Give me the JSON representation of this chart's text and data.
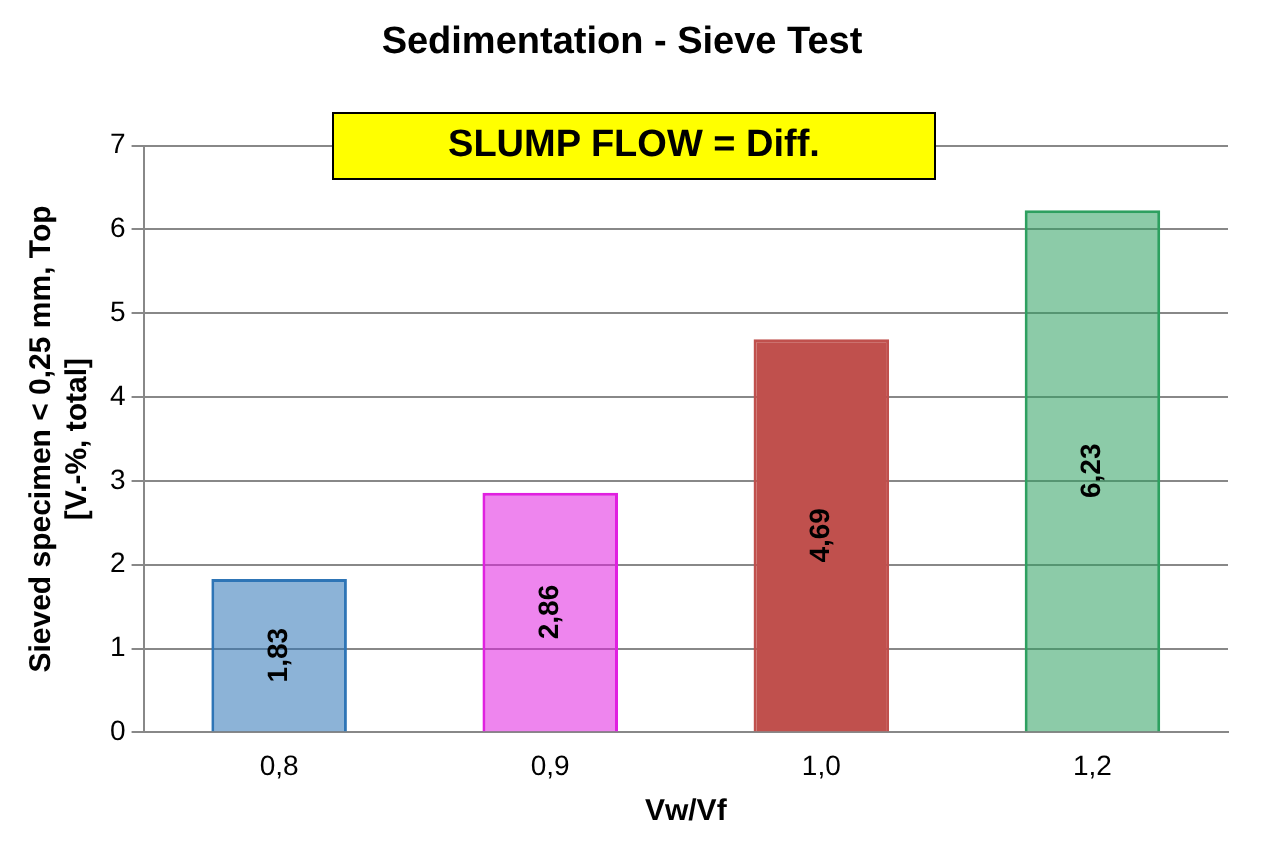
{
  "chart_data": {
    "type": "bar",
    "title": "Sedimentation - Sieve Test",
    "xlabel": "Vw/Vf",
    "ylabel": "Sieved specimen < 0,25 mm, Top\n[V.-%, total]",
    "annotations": [
      "SLUMP FLOW = Diff."
    ],
    "categories": [
      "0,8",
      "0,9",
      "1,0",
      "1,2"
    ],
    "values": [
      1.83,
      2.86,
      4.69,
      6.23
    ],
    "colors": [
      "#2e75b6",
      "#e020e0",
      "#c0504d",
      "#2ea060"
    ],
    "ylim": [
      0,
      7
    ],
    "yticks": [
      0,
      1,
      2,
      3,
      4,
      5,
      6,
      7
    ],
    "value_labels": [
      "1,83",
      "2,86",
      "4,69",
      "6,23"
    ],
    "grid": "y",
    "legend": false
  }
}
